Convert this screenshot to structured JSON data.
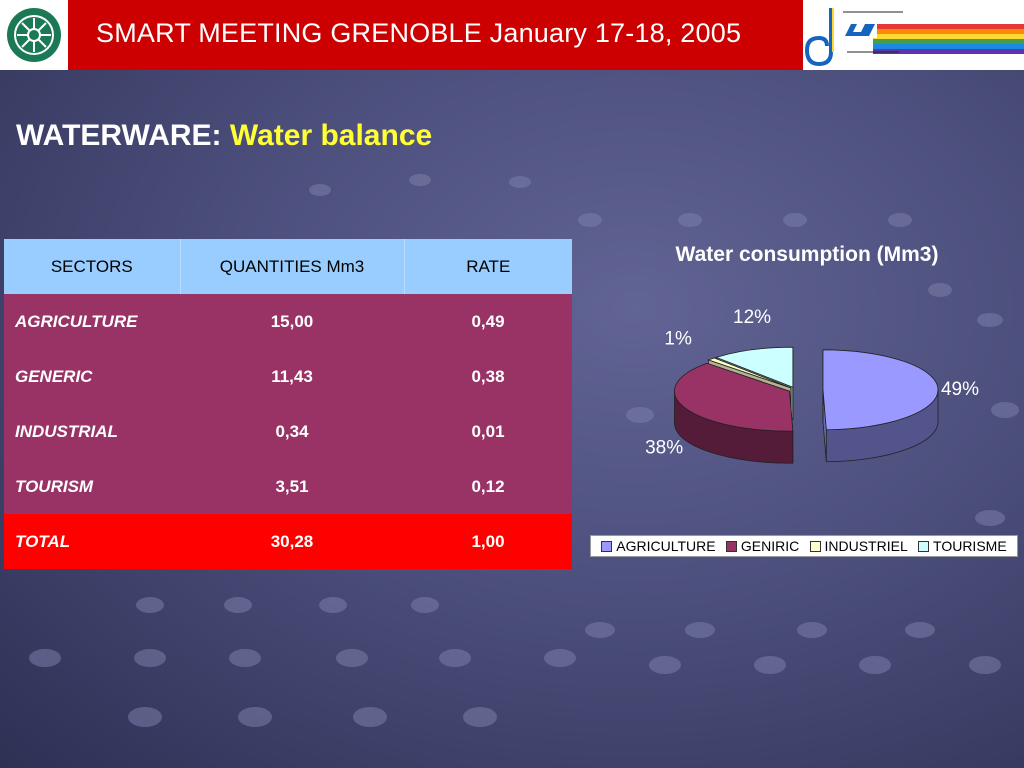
{
  "header": {
    "title": "SMART MEETING GRENOBLE January 17-18, 2005"
  },
  "slide": {
    "title_main": "WATERWARE:",
    "title_accent": "Water balance"
  },
  "table": {
    "headers": [
      "SECTORS",
      "QUANTITIES Mm3",
      "RATE"
    ],
    "rows": [
      {
        "sector": "AGRICULTURE",
        "quantity": "15,00",
        "rate": "0,49"
      },
      {
        "sector": "GENERIC",
        "quantity": "11,43",
        "rate": "0,38"
      },
      {
        "sector": "INDUSTRIAL",
        "quantity": "0,34",
        "rate": "0,01"
      },
      {
        "sector": "TOURISM",
        "quantity": "3,51",
        "rate": "0,12"
      }
    ],
    "total": {
      "sector": "TOTAL",
      "quantity": "30,28",
      "rate": "1,00"
    }
  },
  "colors": {
    "header_red": "#cc0000",
    "table_header": "#99ccff",
    "table_row": "#993366",
    "total_row": "#ff0000",
    "title_accent": "#ffff33"
  },
  "chart_data": {
    "type": "pie",
    "title": "Water consumption (Mm3)",
    "categories": [
      "AGRICULTURE",
      "GENIRIC",
      "INDUSTRIEL",
      "TOURISME"
    ],
    "values": [
      15.0,
      11.43,
      0.34,
      3.51
    ],
    "labels": [
      "49%",
      "38%",
      "1%",
      "12%"
    ],
    "colors": [
      "#9999ff",
      "#993366",
      "#ffffcc",
      "#ccffff"
    ],
    "exploded": true,
    "style": "3d",
    "legend_position": "bottom"
  }
}
